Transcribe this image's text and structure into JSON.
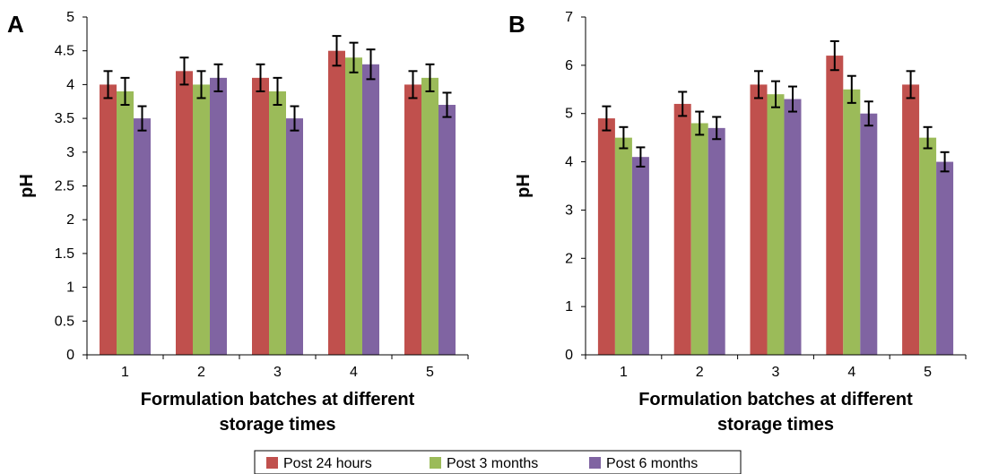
{
  "chart_data": [
    {
      "panel": "A",
      "type": "bar",
      "categories": [
        "1",
        "2",
        "3",
        "4",
        "5"
      ],
      "series": [
        {
          "name": "Post 24 hours",
          "color": "#c0504d",
          "values": [
            4.0,
            4.2,
            4.1,
            4.5,
            4.0
          ],
          "errors": [
            0.2,
            0.2,
            0.2,
            0.22,
            0.2
          ]
        },
        {
          "name": "Post 3 months",
          "color": "#9bbb59",
          "values": [
            3.9,
            4.0,
            3.9,
            4.4,
            4.1
          ],
          "errors": [
            0.2,
            0.2,
            0.2,
            0.22,
            0.2
          ]
        },
        {
          "name": "Post 6 months",
          "color": "#8064a2",
          "values": [
            3.5,
            4.1,
            3.5,
            4.3,
            3.7
          ],
          "errors": [
            0.18,
            0.2,
            0.18,
            0.22,
            0.18
          ]
        }
      ],
      "ylabel": "pH",
      "xlabel_lines": [
        "Formulation batches at different",
        "storage times"
      ],
      "ylim": [
        0,
        5
      ],
      "yticks": [
        "0",
        "0.5",
        "1",
        "1.5",
        "2",
        "2.5",
        "3",
        "3.5",
        "4",
        "4.5",
        "5"
      ],
      "grid": false
    },
    {
      "panel": "B",
      "type": "bar",
      "categories": [
        "1",
        "2",
        "3",
        "4",
        "5"
      ],
      "series": [
        {
          "name": "Post 24 hours",
          "color": "#c0504d",
          "values": [
            4.9,
            5.2,
            5.6,
            6.2,
            5.6
          ],
          "errors": [
            0.25,
            0.25,
            0.28,
            0.3,
            0.28
          ]
        },
        {
          "name": "Post 3 months",
          "color": "#9bbb59",
          "values": [
            4.5,
            4.8,
            5.4,
            5.5,
            4.5
          ],
          "errors": [
            0.22,
            0.24,
            0.27,
            0.28,
            0.22
          ]
        },
        {
          "name": "Post 6 months",
          "color": "#8064a2",
          "values": [
            4.1,
            4.7,
            5.3,
            5.0,
            4.0
          ],
          "errors": [
            0.2,
            0.23,
            0.26,
            0.25,
            0.2
          ]
        }
      ],
      "ylabel": "pH",
      "xlabel_lines": [
        "Formulation batches at different",
        "storage times"
      ],
      "ylim": [
        0,
        7
      ],
      "yticks": [
        "0",
        "1",
        "2",
        "3",
        "4",
        "5",
        "6",
        "7"
      ],
      "grid": false
    }
  ],
  "legend": {
    "placement": "bottom-center",
    "items": [
      {
        "label": "Post 24 hours",
        "color": "#c0504d"
      },
      {
        "label": "Post 3 months",
        "color": "#9bbb59"
      },
      {
        "label": "Post 6 months",
        "color": "#8064a2"
      }
    ]
  }
}
